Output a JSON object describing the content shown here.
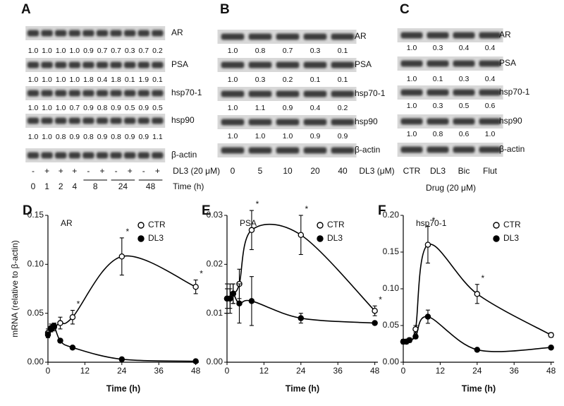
{
  "blots": [
    {
      "label": "A",
      "rows": [
        {
          "name": "AR",
          "values": [
            "1.0",
            "1.0",
            "1.0",
            "1.0",
            "0.9",
            "0.7",
            "0.7",
            "0.3",
            "0.7",
            "0.2"
          ]
        },
        {
          "name": "PSA",
          "values": [
            "1.0",
            "1.0",
            "1.0",
            "1.0",
            "1.8",
            "0.4",
            "1.8",
            "0.1",
            "1.9",
            "0.1"
          ]
        },
        {
          "name": "hsp70-1",
          "values": [
            "1.0",
            "1.0",
            "1.0",
            "0.7",
            "0.9",
            "0.8",
            "0.9",
            "0.5",
            "0.9",
            "0.5"
          ]
        },
        {
          "name": "hsp90",
          "values": [
            "1.0",
            "1.0",
            "0.8",
            "0.9",
            "0.8",
            "0.9",
            "0.8",
            "0.9",
            "0.9",
            "1.1"
          ]
        },
        {
          "name": "β-actin"
        }
      ],
      "treatment": {
        "label": "DL3 (20 μM)",
        "values": [
          "-",
          "+",
          "+",
          "+",
          "-",
          "+",
          "-",
          "+",
          "-",
          "+"
        ]
      },
      "time": {
        "label": "Time (h)",
        "values": [
          "0",
          "1",
          "2",
          "4",
          "8",
          "24",
          "48"
        ]
      }
    },
    {
      "label": "B",
      "rows": [
        {
          "name": "AR",
          "values": [
            "1.0",
            "0.8",
            "0.7",
            "0.3",
            "0.1"
          ]
        },
        {
          "name": "PSA",
          "values": [
            "1.0",
            "0.3",
            "0.2",
            "0.1",
            "0.1"
          ]
        },
        {
          "name": "hsp70-1",
          "values": [
            "1.0",
            "1.1",
            "0.9",
            "0.4",
            "0.2"
          ]
        },
        {
          "name": "hsp90",
          "values": [
            "1.0",
            "1.0",
            "1.0",
            "0.9",
            "0.9"
          ]
        },
        {
          "name": "β-actin"
        }
      ],
      "treatment": {
        "label": "DL3 (μM)",
        "values": [
          "0",
          "5",
          "10",
          "20",
          "40"
        ]
      }
    },
    {
      "label": "C",
      "rows": [
        {
          "name": "AR",
          "values": [
            "1.0",
            "0.3",
            "0.4",
            "0.4"
          ]
        },
        {
          "name": "PSA",
          "values": [
            "1.0",
            "0.1",
            "0.3",
            "0.4"
          ]
        },
        {
          "name": "hsp70-1",
          "values": [
            "1.0",
            "0.3",
            "0.5",
            "0.6"
          ]
        },
        {
          "name": "hsp90",
          "values": [
            "1.0",
            "0.8",
            "0.6",
            "1.0"
          ]
        },
        {
          "name": "β-actin"
        }
      ],
      "treatment": {
        "label": "Drug (20 μM)",
        "values": [
          "CTR",
          "DL3",
          "Bic",
          "Flut"
        ]
      }
    }
  ],
  "chart_data": [
    {
      "type": "line",
      "panel": "D",
      "title": "AR",
      "xlabel": "Time (h)",
      "ylabel": "mRNA (relative to β-actin)",
      "x": [
        0,
        1,
        2,
        4,
        8,
        24,
        48
      ],
      "xlim": [
        0,
        49
      ],
      "xticks": [
        0,
        12,
        24,
        36,
        48
      ],
      "ylim": [
        0,
        0.15
      ],
      "yticks": [
        {
          "value": 0,
          "label": "0.00"
        },
        {
          "value": 0.05,
          "label": "0.05"
        },
        {
          "value": 0.1,
          "label": "0.10"
        },
        {
          "value": 0.15,
          "label": "0.15"
        }
      ],
      "series": [
        {
          "name": "CTR",
          "color": "#000000",
          "filled": false,
          "values": [
            0.03,
            0.035,
            0.036,
            0.04,
            0.046,
            0.108,
            0.077
          ],
          "errors": [
            0.004,
            0.004,
            0.004,
            0.006,
            0.007,
            0.019,
            0.007
          ]
        },
        {
          "name": "DL3",
          "color": "#000000",
          "filled": true,
          "values": [
            0.028,
            0.034,
            0.037,
            0.022,
            0.015,
            0.003,
            0.001
          ],
          "errors": [
            0.003,
            0.003,
            0.003,
            0.002,
            0.001,
            0.001,
            0.001
          ]
        }
      ],
      "annotations": [
        {
          "text": "*",
          "x": 8
        },
        {
          "text": "*",
          "x": 24
        },
        {
          "text": "*",
          "x": 48
        }
      ]
    },
    {
      "type": "line",
      "panel": "E",
      "title": "PSA",
      "xlabel": "Time (h)",
      "x": [
        0,
        1,
        2,
        4,
        8,
        24,
        48
      ],
      "xlim": [
        0,
        49
      ],
      "xticks": [
        0,
        12,
        24,
        36,
        48
      ],
      "ylim": [
        0,
        0.03
      ],
      "yticks": [
        {
          "value": 0,
          "label": "0.00"
        },
        {
          "value": 0.01,
          "label": "0.01"
        },
        {
          "value": 0.02,
          "label": "0.02"
        },
        {
          "value": 0.03,
          "label": "0.03"
        }
      ],
      "series": [
        {
          "name": "CTR",
          "color": "#000000",
          "filled": false,
          "values": [
            0.013,
            0.013,
            0.014,
            0.016,
            0.027,
            0.026,
            0.0105
          ],
          "errors": [
            0.002,
            0.002,
            0.002,
            0.003,
            0.004,
            0.004,
            0.001
          ]
        },
        {
          "name": "DL3",
          "color": "#000000",
          "filled": true,
          "values": [
            0.013,
            0.013,
            0.014,
            0.012,
            0.0125,
            0.009,
            0.008
          ],
          "errors": [
            0.003,
            0.003,
            0.002,
            0.004,
            0.005,
            0.001,
            0.0003
          ]
        }
      ],
      "annotations": [
        {
          "text": "*",
          "x": 8
        },
        {
          "text": "*",
          "x": 24
        },
        {
          "text": "*",
          "x": 48
        }
      ]
    },
    {
      "type": "line",
      "panel": "F",
      "title": "hsp70-1",
      "xlabel": "Time (h)",
      "x": [
        0,
        1,
        2,
        4,
        8,
        24,
        48
      ],
      "xlim": [
        0,
        49
      ],
      "xticks": [
        0,
        12,
        24,
        36,
        48
      ],
      "ylim": [
        0,
        0.2
      ],
      "yticks": [
        {
          "value": 0,
          "label": "0.00"
        },
        {
          "value": 0.05,
          "label": "0.05"
        },
        {
          "value": 0.1,
          "label": "0.10"
        },
        {
          "value": 0.15,
          "label": "0.15"
        },
        {
          "value": 0.2,
          "label": "0.20"
        }
      ],
      "series": [
        {
          "name": "CTR",
          "color": "#000000",
          "filled": false,
          "values": [
            0.028,
            0.028,
            0.03,
            0.045,
            0.16,
            0.093,
            0.037
          ],
          "errors": [
            0.003,
            0.003,
            0.003,
            0.005,
            0.025,
            0.013,
            0.003
          ]
        },
        {
          "name": "DL3",
          "color": "#000000",
          "filled": true,
          "values": [
            0.028,
            0.028,
            0.03,
            0.035,
            0.062,
            0.017,
            0.02
          ],
          "errors": [
            0.003,
            0.003,
            0.003,
            0.003,
            0.009,
            0.002,
            0.002
          ]
        }
      ],
      "annotations": [
        {
          "text": "*",
          "x": 8
        },
        {
          "text": "*",
          "x": 24
        }
      ]
    }
  ]
}
